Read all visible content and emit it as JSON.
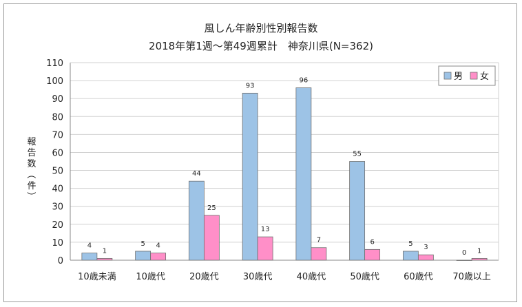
{
  "chart_data": {
    "type": "bar",
    "title": "風しん年齢別性別報告数",
    "subtitle": "2018年第1週〜第49週累計　神奈川県(N=362)",
    "ylabel": "報告数（件）",
    "ylim": [
      0,
      110
    ],
    "yticks": [
      0,
      10,
      20,
      30,
      40,
      50,
      60,
      70,
      80,
      90,
      100,
      110
    ],
    "grid": true,
    "legend_position": "top-right",
    "categories": [
      "10歳未満",
      "10歳代",
      "20歳代",
      "30歳代",
      "40歳代",
      "50歳代",
      "60歳代",
      "70歳以上"
    ],
    "series": [
      {
        "name": "男",
        "color": "#9dc3e6",
        "values": [
          4,
          5,
          44,
          93,
          96,
          55,
          5,
          0
        ]
      },
      {
        "name": "女",
        "color": "#ff8fc8",
        "values": [
          1,
          4,
          25,
          13,
          7,
          6,
          3,
          1
        ]
      }
    ]
  }
}
